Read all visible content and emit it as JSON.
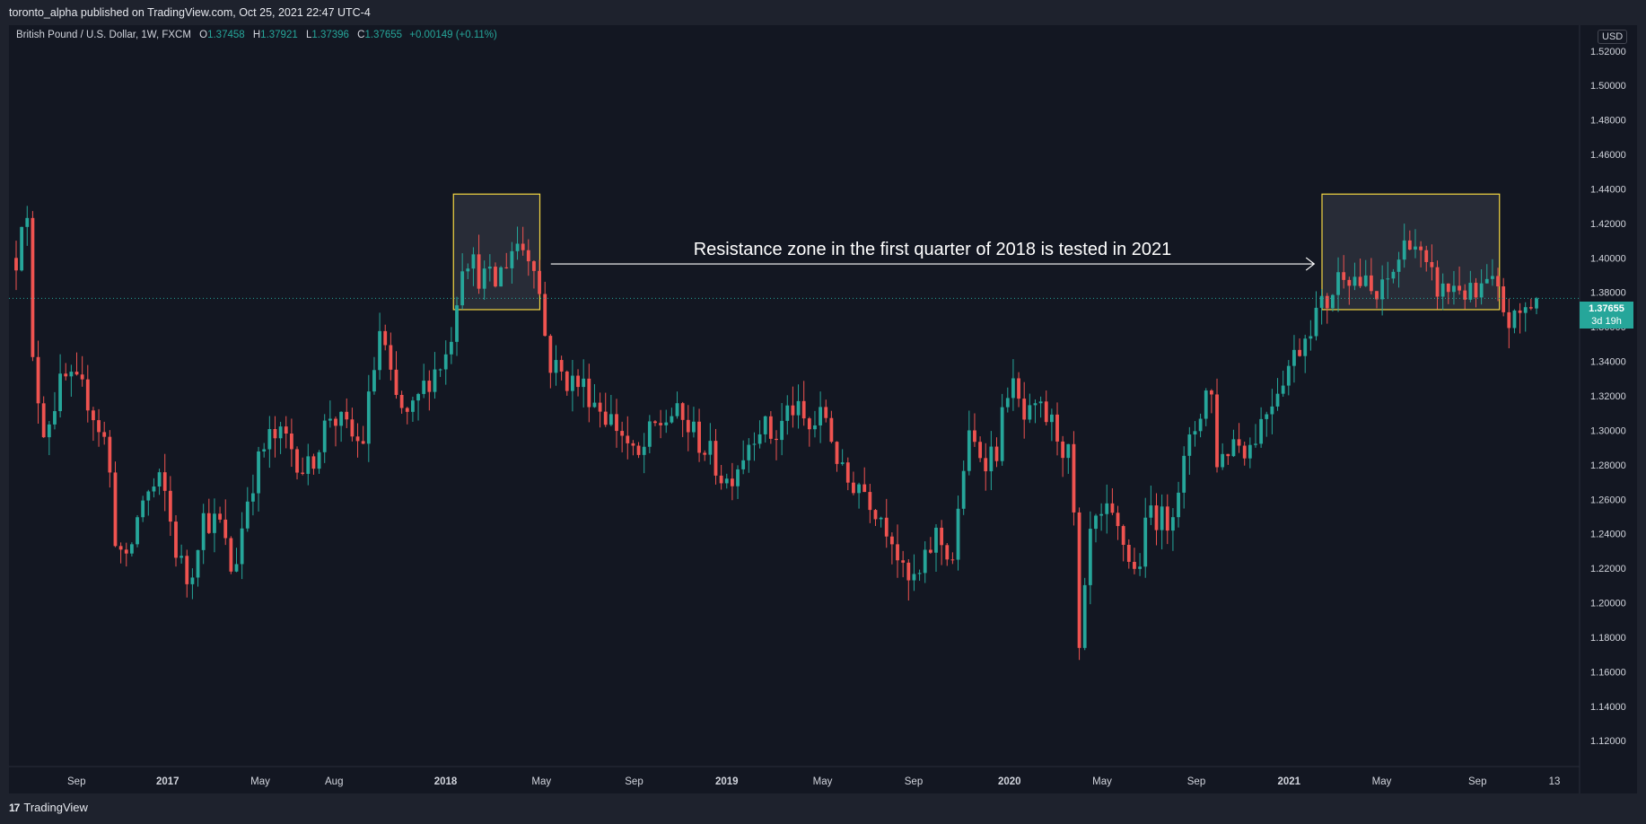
{
  "header": {
    "publisher_text": "toronto_alpha published on TradingView.com, Oct 25, 2021 22:47 UTC-4"
  },
  "legend": {
    "symbol": "British Pound / U.S. Dollar, 1W, FXCM",
    "open_label": "O",
    "open": "1.37458",
    "high_label": "H",
    "high": "1.37921",
    "low_label": "L",
    "low": "1.37396",
    "close_label": "C",
    "close": "1.37655",
    "change": "+0.00149 (+0.11%)"
  },
  "currency_badge": "USD",
  "last_price": {
    "value": "1.37655",
    "countdown": "3d 19h"
  },
  "footer": {
    "brand": "TradingView",
    "logo_icon": "tradingview-logo-icon"
  },
  "colors": {
    "background": "#131722",
    "up": "#26a69a",
    "down": "#ef5350",
    "highlight_border": "#f5d742",
    "text": "#d1d4dc"
  },
  "chart_data": {
    "type": "candlestick",
    "title": "British Pound / U.S. Dollar, 1W, FXCM",
    "annotation": "Resistance zone in the first quarter of 2018 is tested in 2021",
    "ylim": [
      1.105,
      1.535
    ],
    "y_ticks": [
      "1.12000",
      "1.14000",
      "1.16000",
      "1.18000",
      "1.20000",
      "1.22000",
      "1.24000",
      "1.26000",
      "1.28000",
      "1.30000",
      "1.32000",
      "1.34000",
      "1.36000",
      "1.38000",
      "1.40000",
      "1.42000",
      "1.44000",
      "1.46000",
      "1.48000",
      "1.50000",
      "1.52000"
    ],
    "x_ticks": [
      {
        "label": "Sep",
        "x": 0.043,
        "bold": false
      },
      {
        "label": "2017",
        "x": 0.101,
        "bold": true
      },
      {
        "label": "May",
        "x": 0.16,
        "bold": false
      },
      {
        "label": "Aug",
        "x": 0.207,
        "bold": false
      },
      {
        "label": "2018",
        "x": 0.278,
        "bold": true
      },
      {
        "label": "May",
        "x": 0.339,
        "bold": false
      },
      {
        "label": "Sep",
        "x": 0.398,
        "bold": false
      },
      {
        "label": "2019",
        "x": 0.457,
        "bold": true
      },
      {
        "label": "May",
        "x": 0.518,
        "bold": false
      },
      {
        "label": "Sep",
        "x": 0.576,
        "bold": false
      },
      {
        "label": "2020",
        "x": 0.637,
        "bold": true
      },
      {
        "label": "May",
        "x": 0.696,
        "bold": false
      },
      {
        "label": "Sep",
        "x": 0.756,
        "bold": false
      },
      {
        "label": "2021",
        "x": 0.815,
        "bold": true
      },
      {
        "label": "May",
        "x": 0.874,
        "bold": false
      },
      {
        "label": "Sep",
        "x": 0.935,
        "bold": false
      },
      {
        "label": "13",
        "x": 0.984,
        "bold": false
      }
    ],
    "resistance_zones": [
      {
        "x_start": 0.283,
        "x_end": 0.338,
        "y_low": 1.37,
        "y_high": 1.437
      },
      {
        "x_start": 0.836,
        "x_end": 0.949,
        "y_low": 1.37,
        "y_high": 1.437
      }
    ],
    "arrow": {
      "x_start": 0.345,
      "x_end": 0.831,
      "y": 1.3965
    },
    "price_line": 1.37655,
    "keypoints": [
      [
        0.0,
        1.4
      ],
      [
        0.006,
        1.445
      ],
      [
        0.01,
        1.34
      ],
      [
        0.018,
        1.3
      ],
      [
        0.03,
        1.33
      ],
      [
        0.045,
        1.32
      ],
      [
        0.058,
        1.29
      ],
      [
        0.063,
        1.24
      ],
      [
        0.07,
        1.22
      ],
      [
        0.08,
        1.26
      ],
      [
        0.093,
        1.27
      ],
      [
        0.102,
        1.23
      ],
      [
        0.11,
        1.21
      ],
      [
        0.118,
        1.25
      ],
      [
        0.13,
        1.245
      ],
      [
        0.138,
        1.215
      ],
      [
        0.148,
        1.265
      ],
      [
        0.16,
        1.295
      ],
      [
        0.172,
        1.295
      ],
      [
        0.185,
        1.275
      ],
      [
        0.2,
        1.31
      ],
      [
        0.21,
        1.3
      ],
      [
        0.22,
        1.29
      ],
      [
        0.232,
        1.36
      ],
      [
        0.24,
        1.32
      ],
      [
        0.25,
        1.305
      ],
      [
        0.262,
        1.33
      ],
      [
        0.275,
        1.345
      ],
      [
        0.285,
        1.405
      ],
      [
        0.295,
        1.39
      ],
      [
        0.305,
        1.385
      ],
      [
        0.318,
        1.41
      ],
      [
        0.33,
        1.4
      ],
      [
        0.339,
        1.34
      ],
      [
        0.35,
        1.33
      ],
      [
        0.362,
        1.325
      ],
      [
        0.375,
        1.31
      ],
      [
        0.385,
        1.3
      ],
      [
        0.395,
        1.28
      ],
      [
        0.405,
        1.3
      ],
      [
        0.418,
        1.31
      ],
      [
        0.43,
        1.3
      ],
      [
        0.442,
        1.285
      ],
      [
        0.452,
        1.27
      ],
      [
        0.462,
        1.285
      ],
      [
        0.472,
        1.305
      ],
      [
        0.483,
        1.295
      ],
      [
        0.493,
        1.315
      ],
      [
        0.505,
        1.3
      ],
      [
        0.515,
        1.31
      ],
      [
        0.527,
        1.27
      ],
      [
        0.537,
        1.27
      ],
      [
        0.548,
        1.255
      ],
      [
        0.558,
        1.24
      ],
      [
        0.566,
        1.21
      ],
      [
        0.576,
        1.215
      ],
      [
        0.585,
        1.24
      ],
      [
        0.597,
        1.225
      ],
      [
        0.605,
        1.295
      ],
      [
        0.617,
        1.285
      ],
      [
        0.625,
        1.29
      ],
      [
        0.632,
        1.33
      ],
      [
        0.642,
        1.305
      ],
      [
        0.653,
        1.31
      ],
      [
        0.662,
        1.3
      ],
      [
        0.672,
        1.28
      ],
      [
        0.677,
        1.165
      ],
      [
        0.684,
        1.24
      ],
      [
        0.695,
        1.25
      ],
      [
        0.705,
        1.235
      ],
      [
        0.713,
        1.215
      ],
      [
        0.722,
        1.255
      ],
      [
        0.732,
        1.245
      ],
      [
        0.742,
        1.275
      ],
      [
        0.75,
        1.3
      ],
      [
        0.76,
        1.33
      ],
      [
        0.765,
        1.28
      ],
      [
        0.775,
        1.295
      ],
      [
        0.785,
        1.29
      ],
      [
        0.795,
        1.31
      ],
      [
        0.805,
        1.33
      ],
      [
        0.815,
        1.345
      ],
      [
        0.825,
        1.365
      ],
      [
        0.835,
        1.375
      ],
      [
        0.845,
        1.395
      ],
      [
        0.857,
        1.385
      ],
      [
        0.867,
        1.375
      ],
      [
        0.878,
        1.395
      ],
      [
        0.888,
        1.415
      ],
      [
        0.898,
        1.39
      ],
      [
        0.908,
        1.38
      ],
      [
        0.918,
        1.385
      ],
      [
        0.928,
        1.375
      ],
      [
        0.938,
        1.385
      ],
      [
        0.945,
        1.375
      ],
      [
        0.952,
        1.36
      ],
      [
        0.96,
        1.37
      ],
      [
        0.968,
        1.376
      ]
    ]
  }
}
